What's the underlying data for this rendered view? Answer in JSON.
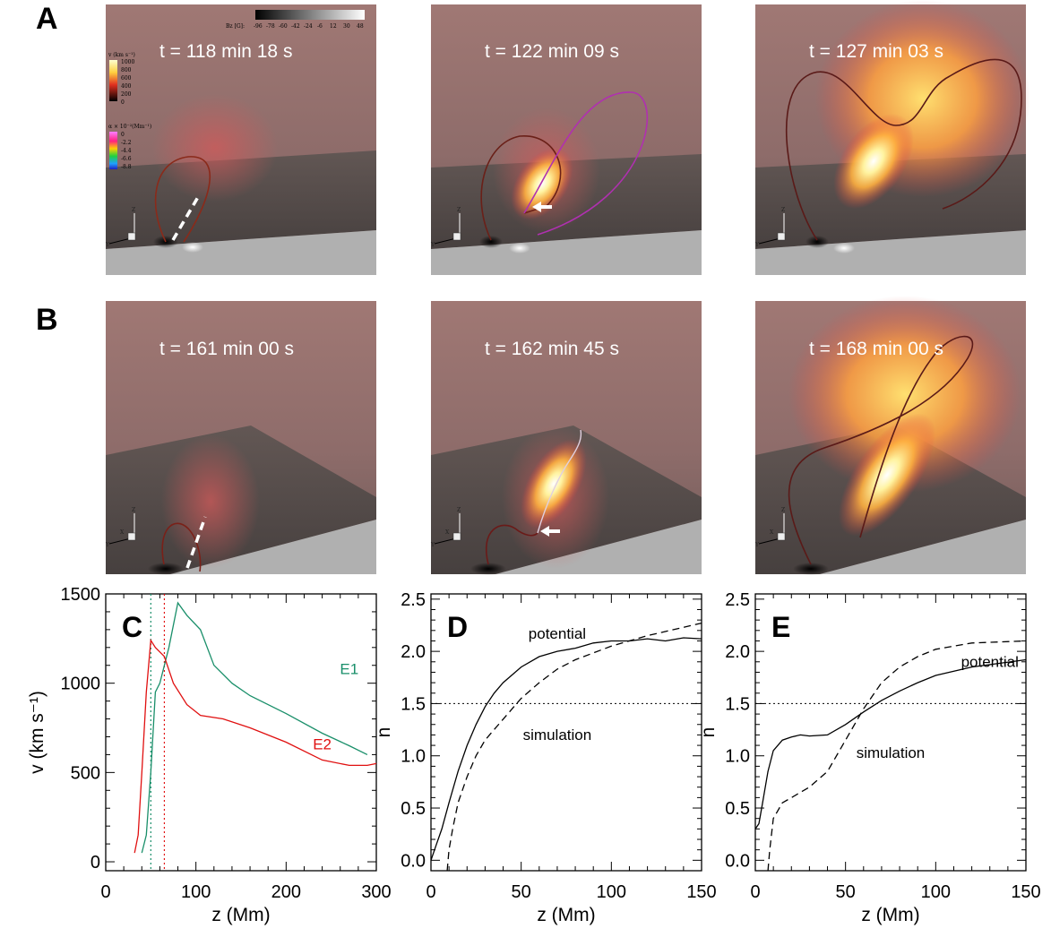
{
  "row_labels": [
    "A",
    "B"
  ],
  "panels_3d": [
    {
      "row": "A",
      "time": "t = 118 min 18 s"
    },
    {
      "row": "A",
      "time": "t = 122 min 09 s"
    },
    {
      "row": "A",
      "time": "t = 127 min 03 s"
    },
    {
      "row": "B",
      "time": "t = 161 min 00 s"
    },
    {
      "row": "B",
      "time": "t = 162 min 45 s"
    },
    {
      "row": "B",
      "time": "t = 168 min 00 s"
    }
  ],
  "colorbars": {
    "bz": {
      "label": "Bz [G]:",
      "ticks": [
        "-96",
        "-78",
        "-60",
        "-42",
        "-24",
        "-6",
        "12",
        "30",
        "48"
      ]
    },
    "v": {
      "label": "v (km s⁻¹)",
      "ticks": [
        "1000",
        "800",
        "600",
        "400",
        "200",
        "0"
      ]
    },
    "alpha": {
      "label": "α × 10⁻²(Mm⁻¹)",
      "ticks": [
        "0",
        "-2.2",
        "-4.4",
        "-6.6",
        "-8.8"
      ]
    }
  },
  "axis_triad": {
    "z": "Z",
    "y": "Y",
    "x": "X"
  },
  "colors": {
    "E1": "#1a8f6a",
    "E2": "#e01010",
    "dotted_E1": "#1a8f6a",
    "dotted_E2": "#e01010"
  },
  "chart_data": [
    {
      "type": "line",
      "panel": "C",
      "xlabel": "z (Mm)",
      "ylabel": "v (km s⁻¹)",
      "xlim": [
        0,
        300
      ],
      "ylim": [
        -50,
        1500
      ],
      "xticks": [
        0,
        100,
        200,
        300
      ],
      "yticks": [
        0,
        500,
        1000,
        1500
      ],
      "series": [
        {
          "name": "E1",
          "x": [
            40,
            45,
            50,
            55,
            60,
            70,
            80,
            90,
            105,
            120,
            140,
            160,
            200,
            240,
            270,
            290
          ],
          "y": [
            50,
            150,
            500,
            950,
            1000,
            1200,
            1450,
            1380,
            1300,
            1100,
            1000,
            930,
            830,
            720,
            650,
            600
          ]
        },
        {
          "name": "E2",
          "x": [
            32,
            36,
            40,
            45,
            50,
            55,
            65,
            75,
            90,
            105,
            130,
            160,
            200,
            240,
            270,
            290,
            300
          ],
          "y": [
            50,
            150,
            500,
            950,
            1240,
            1200,
            1150,
            1000,
            880,
            820,
            800,
            750,
            670,
            570,
            540,
            540,
            550
          ]
        }
      ],
      "vlines": [
        {
          "x": 50,
          "series": "E1",
          "style": "dotted"
        },
        {
          "x": 65,
          "series": "E2",
          "style": "dotted"
        }
      ],
      "annotations": [
        "E1",
        "E2"
      ]
    },
    {
      "type": "line",
      "panel": "D",
      "xlabel": "z (Mm)",
      "ylabel": "n",
      "xlim": [
        0,
        150
      ],
      "ylim": [
        -0.1,
        2.55
      ],
      "xticks": [
        0,
        50,
        100,
        150
      ],
      "yticks": [
        0.0,
        0.5,
        1.0,
        1.5,
        2.0,
        2.5
      ],
      "hline": 1.5,
      "series": [
        {
          "name": "potential",
          "style": "solid",
          "x": [
            0,
            3,
            6,
            10,
            15,
            20,
            25,
            30,
            35,
            40,
            50,
            60,
            70,
            80,
            90,
            100,
            110,
            120,
            130,
            140,
            150
          ],
          "y": [
            0.0,
            0.15,
            0.3,
            0.55,
            0.85,
            1.1,
            1.3,
            1.47,
            1.6,
            1.7,
            1.85,
            1.95,
            2.0,
            2.03,
            2.08,
            2.1,
            2.1,
            2.12,
            2.1,
            2.13,
            2.12
          ]
        },
        {
          "name": "simulation",
          "style": "dashed",
          "x": [
            9,
            10,
            12,
            15,
            20,
            25,
            30,
            40,
            50,
            60,
            70,
            80,
            100,
            120,
            150
          ],
          "y": [
            -0.1,
            0.1,
            0.3,
            0.55,
            0.8,
            1.0,
            1.15,
            1.35,
            1.55,
            1.7,
            1.83,
            1.92,
            2.05,
            2.15,
            2.27
          ]
        }
      ],
      "annotations": [
        "potential",
        "simulation"
      ]
    },
    {
      "type": "line",
      "panel": "E",
      "xlabel": "z (Mm)",
      "ylabel": "n",
      "xlim": [
        0,
        150
      ],
      "ylim": [
        -0.1,
        2.55
      ],
      "xticks": [
        0,
        50,
        100,
        150
      ],
      "yticks": [
        0.0,
        0.5,
        1.0,
        1.5,
        2.0,
        2.5
      ],
      "hline": 1.5,
      "series": [
        {
          "name": "potential",
          "style": "solid",
          "x": [
            0,
            2,
            4,
            7,
            10,
            15,
            20,
            25,
            30,
            40,
            50,
            60,
            70,
            80,
            90,
            100,
            120,
            150
          ],
          "y": [
            0.3,
            0.35,
            0.55,
            0.85,
            1.05,
            1.15,
            1.18,
            1.2,
            1.19,
            1.2,
            1.3,
            1.42,
            1.53,
            1.62,
            1.7,
            1.77,
            1.85,
            1.92
          ]
        },
        {
          "name": "simulation",
          "style": "dashed",
          "x": [
            7,
            8,
            10,
            15,
            20,
            25,
            30,
            40,
            50,
            60,
            70,
            80,
            90,
            100,
            120,
            150
          ],
          "y": [
            -0.1,
            0.1,
            0.4,
            0.55,
            0.6,
            0.65,
            0.7,
            0.85,
            1.15,
            1.45,
            1.7,
            1.85,
            1.95,
            2.02,
            2.08,
            2.1
          ]
        }
      ],
      "annotations": [
        "potential",
        "simulation"
      ]
    }
  ]
}
